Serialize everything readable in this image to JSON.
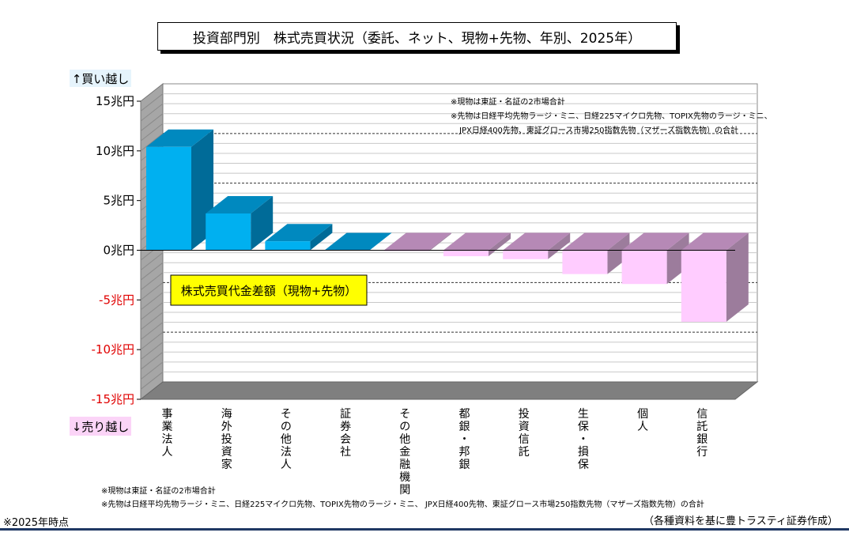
{
  "chart_data": {
    "type": "bar",
    "title": "投資部門別　株式売買状況（委託、ネット、現物+先物、年別、2025年）",
    "categories": [
      "事業法人",
      "海外投資家",
      "その他法人",
      "証券会社",
      "その他金融機関",
      "都銀・邦銀",
      "投資信託",
      "生保・損保",
      "個人",
      "信託銀行"
    ],
    "values": [
      10.4,
      3.7,
      0.9,
      0.0,
      -0.1,
      -0.6,
      -0.9,
      -2.4,
      -3.4,
      -7.2
    ],
    "ylim": [
      -15,
      15
    ],
    "yticks": [
      {
        "label": "15兆円",
        "value": 15
      },
      {
        "label": "10兆円",
        "value": 10
      },
      {
        "label": "5兆円",
        "value": 5
      },
      {
        "label": "0兆円",
        "value": 0
      },
      {
        "label": "-5兆円",
        "value": -5
      },
      {
        "label": "-10兆円",
        "value": -10
      },
      {
        "label": "-15兆円",
        "value": -15
      }
    ],
    "axis_top_label": "↑買い越し",
    "axis_bottom_label": "↓売り越し",
    "series_label": "株式売買代金差額（現物+先物）",
    "inner_notes": [
      "※現物は東証・名証の2市場合計",
      "※先物は日経平均先物ラージ・ミニ、日経225マイクロ先物、TOPIX先物のラージ・ミニ、",
      "JPX日経400先物、東証グロース市場250指数先物（マザーズ指数先物）の合計"
    ],
    "bottom_notes": [
      "※現物は東証・名証の2市場合計",
      "※先物は日経平均先物ラージ・ミニ、日経225マイクロ先物、TOPIX先物のラージ・ミニ、 JPX日経400先物、東証グロース市場250指数先物（マザーズ指数先物）の合計"
    ],
    "grid": true,
    "colors": {
      "positive_front": "#00b0f0",
      "positive_top": "#0089bf",
      "positive_side": "#006b98",
      "negative_front": "#ffccff",
      "negative_top": "#b689b6",
      "negative_side": "#9c7c9c",
      "negative_label": "#e00000"
    }
  },
  "footer_note": "※2025年時点",
  "source": "（各種資料を基に豊トラスティ証券作成）"
}
